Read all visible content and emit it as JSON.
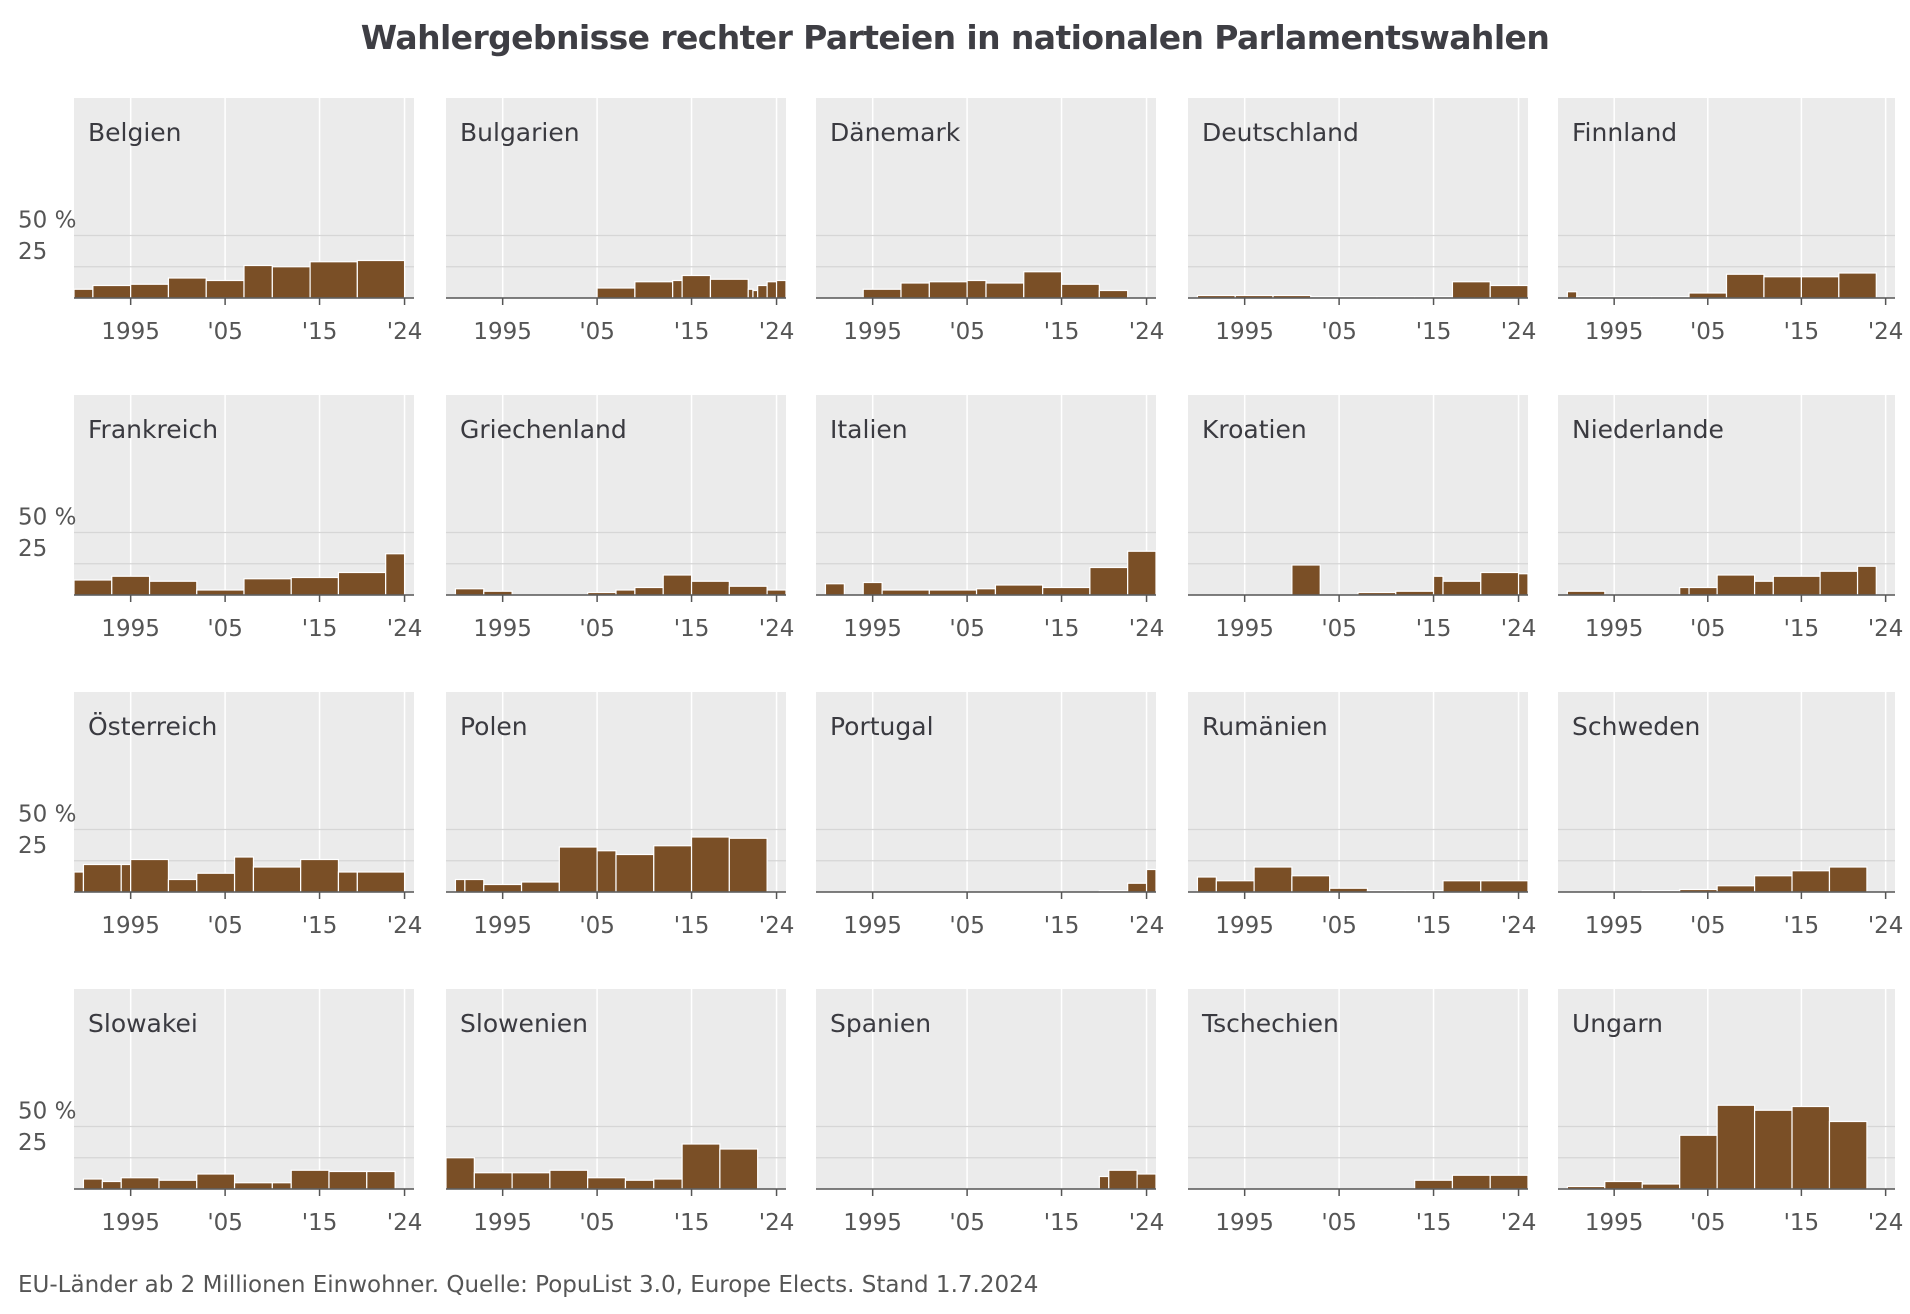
{
  "title": "Wahlergebnisse rechter Parteien in nationalen Parlamentswahlen",
  "footnote": "EU-Länder ab 2 Millionen Einwohner. Quelle: PopuList 3.0, Europe Elects. Stand 1.7.2024",
  "colors": {
    "bar": "#7a4f26",
    "panel": "#ebebeb",
    "gridline": "#ffffff",
    "hline": "#d6d6d6"
  },
  "chart_data": {
    "type": "bar",
    "x_range": [
      1989,
      2025
    ],
    "y_range": [
      0,
      80
    ],
    "y_ticks": [
      {
        "value": 50,
        "label": "50 %"
      },
      {
        "value": 25,
        "label": "25"
      }
    ],
    "x_ticks": [
      {
        "value": 1995,
        "label": "1995"
      },
      {
        "value": 2005,
        "label": "'05"
      },
      {
        "value": 2015,
        "label": "'15"
      },
      {
        "value": 2024,
        "label": "'24"
      }
    ],
    "panels": [
      {
        "name": "Belgien",
        "bars": [
          [
            1989,
            1991,
            7
          ],
          [
            1991,
            1995,
            10
          ],
          [
            1995,
            1999,
            11
          ],
          [
            1999,
            2003,
            16
          ],
          [
            2003,
            2007,
            14
          ],
          [
            2007,
            2010,
            26
          ],
          [
            2010,
            2014,
            25
          ],
          [
            2014,
            2019,
            29
          ],
          [
            2019,
            2024,
            30
          ]
        ]
      },
      {
        "name": "Bulgarien",
        "bars": [
          [
            1990,
            1991,
            0
          ],
          [
            1991,
            1994,
            0
          ],
          [
            1994,
            1997,
            0
          ],
          [
            1997,
            2001,
            0
          ],
          [
            2001,
            2005,
            0
          ],
          [
            2005,
            2009,
            8
          ],
          [
            2009,
            2013,
            13
          ],
          [
            2013,
            2014,
            14
          ],
          [
            2014,
            2017,
            18
          ],
          [
            2017,
            2021,
            15
          ],
          [
            2021,
            2021.5,
            7
          ],
          [
            2021.5,
            2022,
            6
          ],
          [
            2022,
            2023,
            10
          ],
          [
            2023,
            2024,
            13
          ],
          [
            2024,
            2025,
            14
          ]
        ]
      },
      {
        "name": "Dänemark",
        "bars": [
          [
            1990,
            1994,
            0
          ],
          [
            1994,
            1998,
            7
          ],
          [
            1998,
            2001,
            12
          ],
          [
            2001,
            2005,
            13
          ],
          [
            2005,
            2007,
            14
          ],
          [
            2007,
            2011,
            12
          ],
          [
            2011,
            2015,
            21
          ],
          [
            2015,
            2019,
            11
          ],
          [
            2019,
            2022,
            6
          ]
        ]
      },
      {
        "name": "Deutschland",
        "bars": [
          [
            1990,
            1994,
            2
          ],
          [
            1994,
            1998,
            2
          ],
          [
            1998,
            2002,
            2
          ],
          [
            2002,
            2005,
            1
          ],
          [
            2005,
            2009,
            1
          ],
          [
            2009,
            2013,
            1
          ],
          [
            2013,
            2017,
            1
          ],
          [
            2017,
            2021,
            13
          ],
          [
            2021,
            2025,
            10
          ]
        ]
      },
      {
        "name": "Finnland",
        "bars": [
          [
            1990,
            1991,
            5
          ],
          [
            1991,
            1995,
            1
          ],
          [
            1995,
            1999,
            1
          ],
          [
            1999,
            2003,
            1
          ],
          [
            2003,
            2007,
            4
          ],
          [
            2007,
            2011,
            19
          ],
          [
            2011,
            2015,
            17
          ],
          [
            2015,
            2019,
            17
          ],
          [
            2019,
            2023,
            20
          ]
        ]
      },
      {
        "name": "Frankreich",
        "bars": [
          [
            1989,
            1993,
            12
          ],
          [
            1993,
            1997,
            15
          ],
          [
            1997,
            2002,
            11
          ],
          [
            2002,
            2007,
            4
          ],
          [
            2007,
            2012,
            13
          ],
          [
            2012,
            2017,
            14
          ],
          [
            2017,
            2022,
            18
          ],
          [
            2022,
            2024,
            33
          ]
        ]
      },
      {
        "name": "Griechenland",
        "bars": [
          [
            1990,
            1993,
            5
          ],
          [
            1993,
            1996,
            3
          ],
          [
            1996,
            2004,
            0
          ],
          [
            2004,
            2007,
            2
          ],
          [
            2007,
            2009,
            4
          ],
          [
            2009,
            2012,
            6
          ],
          [
            2012,
            2015,
            16
          ],
          [
            2015,
            2019,
            11
          ],
          [
            2019,
            2023,
            7
          ],
          [
            2023,
            2025,
            4
          ]
        ]
      },
      {
        "name": "Italien",
        "bars": [
          [
            1990,
            1992,
            9
          ],
          [
            1992,
            1994,
            0
          ],
          [
            1994,
            1996,
            10
          ],
          [
            1996,
            2001,
            4
          ],
          [
            2001,
            2006,
            4
          ],
          [
            2006,
            2008,
            5
          ],
          [
            2008,
            2013,
            8
          ],
          [
            2013,
            2018,
            6
          ],
          [
            2018,
            2022,
            22
          ],
          [
            2022,
            2025,
            35
          ]
        ]
      },
      {
        "name": "Kroatien",
        "bars": [
          [
            1990,
            2000,
            0
          ],
          [
            2000,
            2003,
            24
          ],
          [
            2003,
            2007,
            0
          ],
          [
            2007,
            2011,
            2
          ],
          [
            2011,
            2015,
            3
          ],
          [
            2015,
            2016,
            15
          ],
          [
            2016,
            2020,
            11
          ],
          [
            2020,
            2024,
            18
          ],
          [
            2024,
            2025,
            17
          ]
        ]
      },
      {
        "name": "Niederlande",
        "bars": [
          [
            1990,
            1994,
            3
          ],
          [
            1994,
            1998,
            0
          ],
          [
            1998,
            2002,
            0
          ],
          [
            2002,
            2003,
            6
          ],
          [
            2003,
            2006,
            6
          ],
          [
            2006,
            2010,
            16
          ],
          [
            2010,
            2012,
            11
          ],
          [
            2012,
            2017,
            15
          ],
          [
            2017,
            2021,
            19
          ],
          [
            2021,
            2023,
            23
          ]
        ]
      },
      {
        "name": "Österreich",
        "bars": [
          [
            1989,
            1990,
            16
          ],
          [
            1990,
            1994,
            22
          ],
          [
            1994,
            1995,
            22
          ],
          [
            1995,
            1999,
            26
          ],
          [
            1999,
            2002,
            10
          ],
          [
            2002,
            2006,
            15
          ],
          [
            2006,
            2008,
            28
          ],
          [
            2008,
            2013,
            20
          ],
          [
            2013,
            2017,
            26
          ],
          [
            2017,
            2019,
            16
          ],
          [
            2019,
            2024,
            16
          ]
        ]
      },
      {
        "name": "Polen",
        "bars": [
          [
            1990,
            1991,
            10
          ],
          [
            1991,
            1993,
            10
          ],
          [
            1993,
            1997,
            6
          ],
          [
            1997,
            2001,
            8
          ],
          [
            2001,
            2005,
            36
          ],
          [
            2005,
            2007,
            33
          ],
          [
            2007,
            2011,
            30
          ],
          [
            2011,
            2015,
            37
          ],
          [
            2015,
            2019,
            44
          ],
          [
            2019,
            2023,
            43
          ]
        ]
      },
      {
        "name": "Portugal",
        "bars": [
          [
            1990,
            2019,
            0
          ],
          [
            2019,
            2022,
            1
          ],
          [
            2022,
            2024,
            7
          ],
          [
            2024,
            2025,
            18
          ]
        ]
      },
      {
        "name": "Rumänien",
        "bars": [
          [
            1990,
            1992,
            12
          ],
          [
            1992,
            1996,
            9
          ],
          [
            1996,
            2000,
            20
          ],
          [
            2000,
            2004,
            13
          ],
          [
            2004,
            2008,
            3
          ],
          [
            2008,
            2012,
            1
          ],
          [
            2012,
            2016,
            1
          ],
          [
            2016,
            2020,
            9
          ],
          [
            2020,
            2025,
            9
          ]
        ]
      },
      {
        "name": "Schweden",
        "bars": [
          [
            1990,
            1998,
            0
          ],
          [
            1998,
            2002,
            1
          ],
          [
            2002,
            2006,
            2
          ],
          [
            2006,
            2010,
            5
          ],
          [
            2010,
            2014,
            13
          ],
          [
            2014,
            2018,
            17
          ],
          [
            2018,
            2022,
            20
          ]
        ]
      },
      {
        "name": "Slowakei",
        "bars": [
          [
            1990,
            1992,
            8
          ],
          [
            1992,
            1994,
            6
          ],
          [
            1994,
            1998,
            9
          ],
          [
            1998,
            2002,
            7
          ],
          [
            2002,
            2006,
            12
          ],
          [
            2006,
            2010,
            5
          ],
          [
            2010,
            2012,
            5
          ],
          [
            2012,
            2016,
            15
          ],
          [
            2016,
            2020,
            14
          ],
          [
            2020,
            2023,
            14
          ]
        ]
      },
      {
        "name": "Slowenien",
        "bars": [
          [
            1989,
            1992,
            25
          ],
          [
            1992,
            1996,
            13
          ],
          [
            1996,
            2000,
            13
          ],
          [
            2000,
            2004,
            15
          ],
          [
            2004,
            2008,
            9
          ],
          [
            2008,
            2011,
            7
          ],
          [
            2011,
            2014,
            8
          ],
          [
            2014,
            2018,
            36
          ],
          [
            2018,
            2022,
            32
          ]
        ]
      },
      {
        "name": "Spanien",
        "bars": [
          [
            1990,
            2019,
            0
          ],
          [
            2019,
            2020,
            10
          ],
          [
            2020,
            2023,
            15
          ],
          [
            2023,
            2025,
            12
          ]
        ]
      },
      {
        "name": "Tschechien",
        "bars": [
          [
            1990,
            1992,
            0
          ],
          [
            1992,
            1996,
            0
          ],
          [
            1996,
            1998,
            0
          ],
          [
            1998,
            2002,
            0
          ],
          [
            2002,
            2013,
            0
          ],
          [
            2013,
            2017,
            7
          ],
          [
            2017,
            2021,
            11
          ],
          [
            2021,
            2025,
            11
          ]
        ]
      },
      {
        "name": "Ungarn",
        "bars": [
          [
            1990,
            1994,
            2
          ],
          [
            1994,
            1998,
            6
          ],
          [
            1998,
            2002,
            4
          ],
          [
            2002,
            2006,
            43
          ],
          [
            2006,
            2010,
            67
          ],
          [
            2010,
            2014,
            63
          ],
          [
            2014,
            2018,
            66
          ],
          [
            2018,
            2022,
            54
          ]
        ]
      }
    ]
  }
}
